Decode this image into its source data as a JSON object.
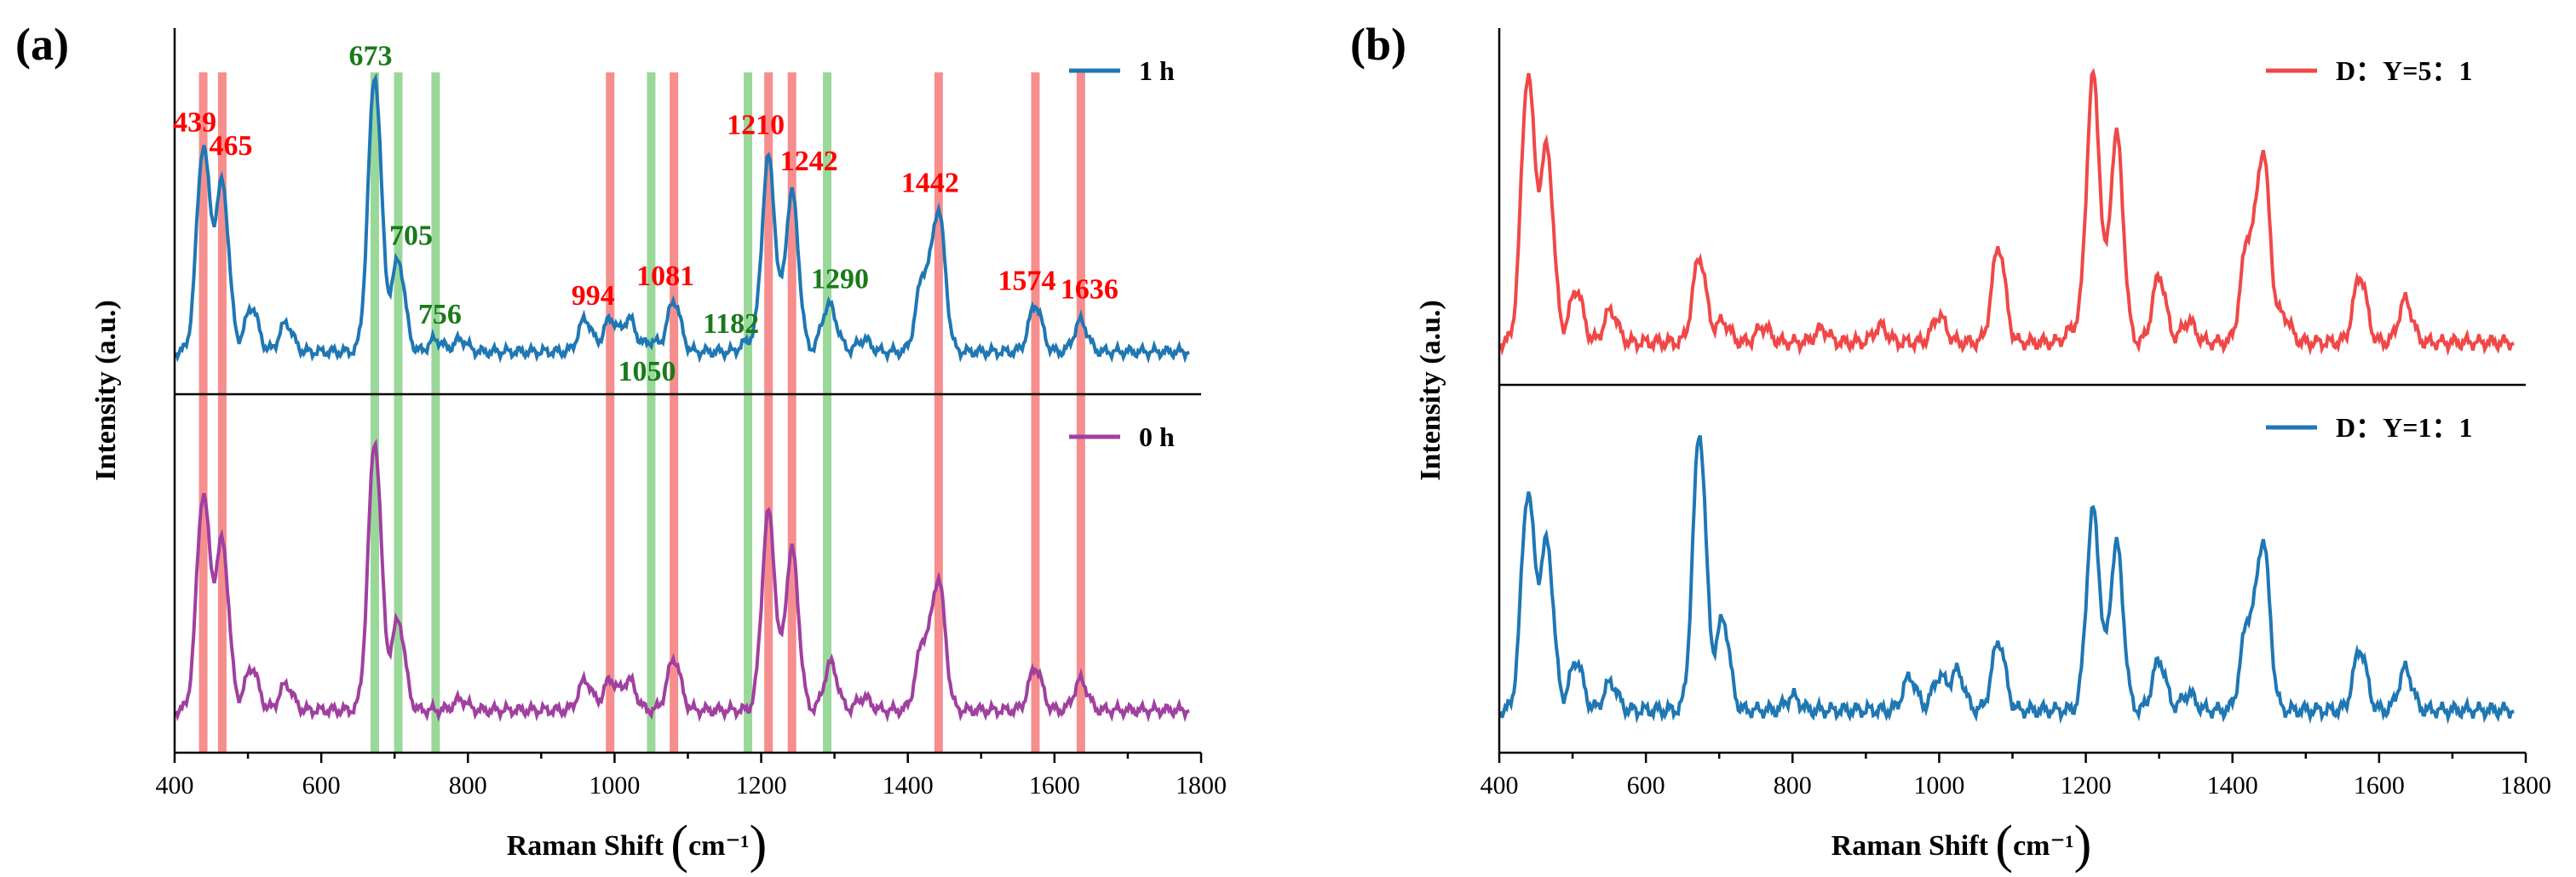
{
  "chart_data": [
    {
      "panel": "(a)",
      "type": "line",
      "xlabel": "Raman Shift",
      "xunit": "cm⁻¹",
      "ylabel": "Intensity (a.u.)",
      "xlim": [
        400,
        1800
      ],
      "xticks": [
        400,
        600,
        800,
        1000,
        1200,
        1400,
        1600,
        1800
      ],
      "series": [
        {
          "name": "1 h",
          "color": "#1f77b4",
          "subplot": "top",
          "peaks": [
            [
              439,
              1.0
            ],
            [
              465,
              0.82
            ],
            [
              505,
              0.22
            ],
            [
              552,
              0.14
            ],
            [
              673,
              1.35
            ],
            [
              705,
              0.45
            ],
            [
              756,
              0.06
            ],
            [
              790,
              0.06
            ],
            [
              960,
              0.16
            ],
            [
              994,
              0.16
            ],
            [
              1020,
              0.16
            ],
            [
              1050,
              0.05
            ],
            [
              1081,
              0.25
            ],
            [
              1182,
              0.05
            ],
            [
              1210,
              0.95
            ],
            [
              1242,
              0.78
            ],
            [
              1290,
              0.18
            ],
            [
              1300,
              0.08
            ],
            [
              1340,
              0.06
            ],
            [
              1420,
              0.35
            ],
            [
              1442,
              0.68
            ],
            [
              1574,
              0.23
            ],
            [
              1636,
              0.15
            ]
          ]
        },
        {
          "name": "0 h",
          "color": "#a040a0",
          "subplot": "bottom",
          "peaks": [
            [
              439,
              1.0
            ],
            [
              465,
              0.78
            ],
            [
              505,
              0.2
            ],
            [
              552,
              0.12
            ],
            [
              673,
              1.25
            ],
            [
              705,
              0.42
            ],
            [
              790,
              0.05
            ],
            [
              960,
              0.14
            ],
            [
              994,
              0.14
            ],
            [
              1020,
              0.14
            ],
            [
              1081,
              0.24
            ],
            [
              1210,
              0.92
            ],
            [
              1242,
              0.75
            ],
            [
              1295,
              0.22
            ],
            [
              1340,
              0.06
            ],
            [
              1420,
              0.3
            ],
            [
              1442,
              0.6
            ],
            [
              1574,
              0.2
            ],
            [
              1636,
              0.14
            ]
          ]
        }
      ],
      "red_bands": [
        439,
        465,
        994,
        1081,
        1210,
        1242,
        1442,
        1574,
        1636
      ],
      "green_bands": [
        673,
        705,
        756,
        1050,
        1182,
        1290
      ],
      "annotations_red": [
        {
          "x": 439,
          "text": "439"
        },
        {
          "x": 465,
          "text": "465"
        },
        {
          "x": 994,
          "text": "994"
        },
        {
          "x": 1081,
          "text": "1081"
        },
        {
          "x": 1210,
          "text": "1210"
        },
        {
          "x": 1242,
          "text": "1242"
        },
        {
          "x": 1442,
          "text": "1442"
        },
        {
          "x": 1574,
          "text": "1574"
        },
        {
          "x": 1636,
          "text": "1636"
        }
      ],
      "annotations_green": [
        {
          "x": 673,
          "text": "673"
        },
        {
          "x": 705,
          "text": "705"
        },
        {
          "x": 756,
          "text": "756"
        },
        {
          "x": 1050,
          "text": "1050"
        },
        {
          "x": 1182,
          "text": "1182"
        },
        {
          "x": 1290,
          "text": "1290"
        }
      ]
    },
    {
      "panel": "(b)",
      "type": "line",
      "xlabel": "Raman Shift",
      "xunit": "cm⁻¹",
      "ylabel": "Intensity (a.u.)",
      "xlim": [
        400,
        1800
      ],
      "xticks": [
        400,
        600,
        800,
        1000,
        1200,
        1400,
        1600,
        1800
      ],
      "series": [
        {
          "name": "D：Y=5：1",
          "color": "#f04848",
          "subplot": "top",
          "peaks": [
            [
              439,
              1.0
            ],
            [
              465,
              0.72
            ],
            [
              505,
              0.2
            ],
            [
              552,
              0.12
            ],
            [
              673,
              0.32
            ],
            [
              705,
              0.08
            ],
            [
              760,
              0.06
            ],
            [
              840,
              0.05
            ],
            [
              920,
              0.06
            ],
            [
              1000,
              0.1
            ],
            [
              1081,
              0.36
            ],
            [
              1182,
              0.05
            ],
            [
              1210,
              1.0
            ],
            [
              1242,
              0.78
            ],
            [
              1300,
              0.25
            ],
            [
              1340,
              0.08
            ],
            [
              1420,
              0.36
            ],
            [
              1442,
              0.7
            ],
            [
              1470,
              0.1
            ],
            [
              1574,
              0.25
            ],
            [
              1636,
              0.16
            ]
          ]
        },
        {
          "name": "D：Y=1：1",
          "color": "#1f77b4",
          "subplot": "bottom",
          "peaks": [
            [
              439,
              0.78
            ],
            [
              465,
              0.6
            ],
            [
              505,
              0.18
            ],
            [
              552,
              0.1
            ],
            [
              673,
              1.0
            ],
            [
              705,
              0.33
            ],
            [
              800,
              0.05
            ],
            [
              960,
              0.12
            ],
            [
              1000,
              0.12
            ],
            [
              1025,
              0.14
            ],
            [
              1081,
              0.25
            ],
            [
              1210,
              0.72
            ],
            [
              1242,
              0.6
            ],
            [
              1300,
              0.18
            ],
            [
              1340,
              0.06
            ],
            [
              1420,
              0.3
            ],
            [
              1442,
              0.6
            ],
            [
              1574,
              0.22
            ],
            [
              1636,
              0.15
            ]
          ]
        }
      ]
    }
  ]
}
